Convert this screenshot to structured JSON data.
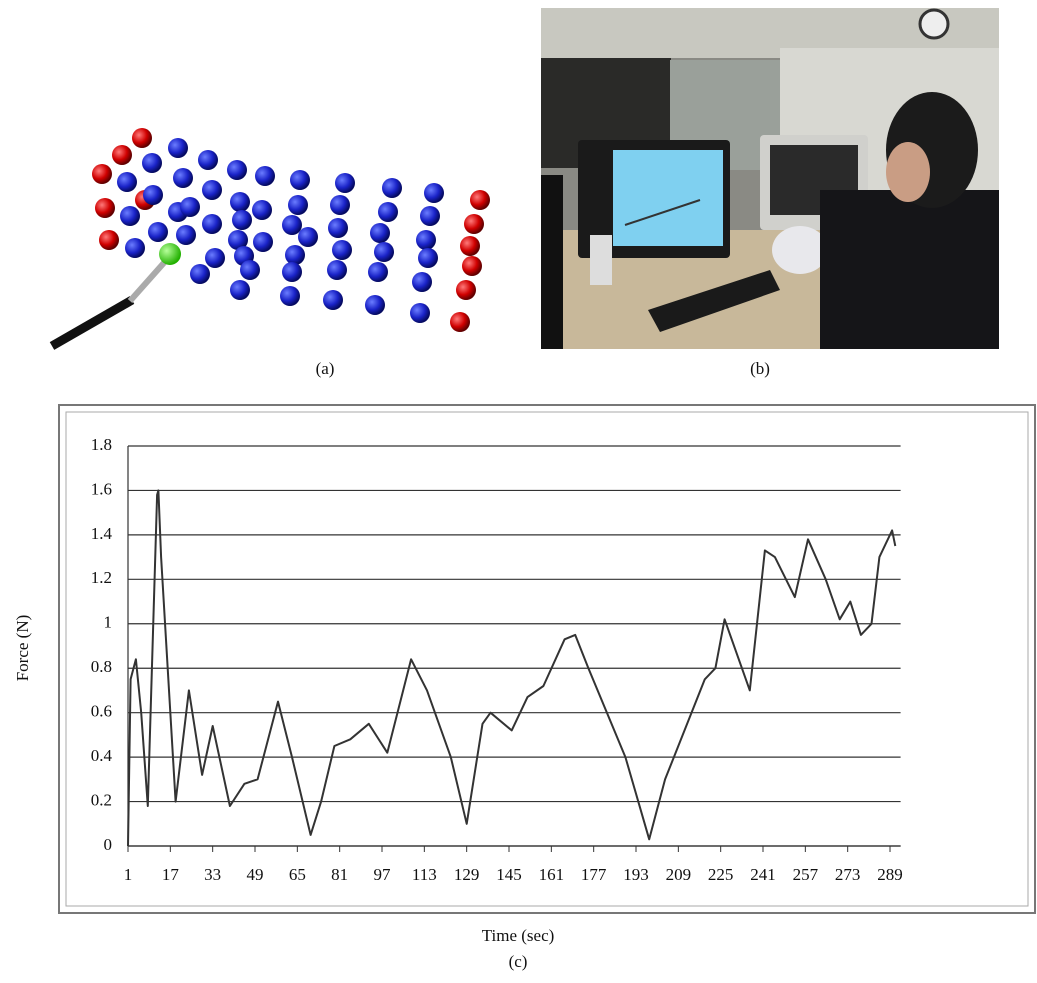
{
  "captions": {
    "a": "(a)",
    "b": "(b)",
    "c": "(c)"
  },
  "chart_data": {
    "type": "line",
    "ylabel": "Force (N)",
    "xlabel": "Time (sec)",
    "x": [
      1,
      2,
      4,
      6,
      8.5,
      12,
      12.5,
      13.5,
      19,
      24,
      29,
      33,
      39.5,
      45,
      50,
      57.7,
      63,
      70,
      74,
      79,
      85,
      92,
      99,
      108,
      114,
      123,
      129,
      135,
      138,
      146,
      152,
      158,
      166,
      170,
      175,
      189,
      198,
      204,
      219,
      223,
      226.5,
      236,
      241.7,
      245.5,
      253,
      258,
      264.7,
      270,
      274,
      278,
      282,
      285,
      289.8,
      291
    ],
    "values": [
      0,
      0.75,
      0.84,
      0.6,
      0.18,
      1.58,
      1.6,
      1.3,
      0.2,
      0.7,
      0.32,
      0.54,
      0.18,
      0.28,
      0.3,
      0.65,
      0.4,
      0.05,
      0.2,
      0.45,
      0.48,
      0.55,
      0.42,
      0.84,
      0.7,
      0.4,
      0.1,
      0.55,
      0.6,
      0.52,
      0.67,
      0.72,
      0.93,
      0.95,
      0.8,
      0.4,
      0.03,
      0.3,
      0.75,
      0.8,
      1.02,
      0.7,
      1.33,
      1.3,
      1.12,
      1.38,
      1.2,
      1.02,
      1.1,
      0.95,
      1.0,
      1.3,
      1.42,
      1.35
    ],
    "color": "#333333",
    "xlim": [
      1,
      293
    ],
    "xticks": [
      1,
      17,
      33,
      49,
      65,
      81,
      97,
      113,
      129,
      145,
      161,
      177,
      193,
      209,
      225,
      241,
      257,
      273,
      289
    ],
    "ylim": [
      0,
      1.8
    ],
    "yticks": [
      0,
      0.2,
      0.4,
      0.6,
      0.8,
      1,
      1.2,
      1.4,
      1.6,
      1.8
    ],
    "grid": true
  }
}
